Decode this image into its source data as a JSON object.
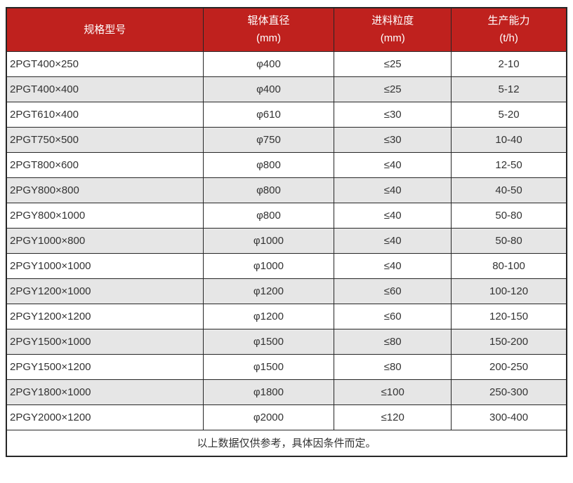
{
  "table": {
    "headers": [
      {
        "line1": "规格型号",
        "line2": ""
      },
      {
        "line1": "辊体直径",
        "line2": "(mm)"
      },
      {
        "line1": "进料粒度",
        "line2": "(mm)"
      },
      {
        "line1": "生产能力",
        "line2": "(t/h)"
      }
    ],
    "rows": [
      [
        "2PGT400×250",
        "φ400",
        "≤25",
        "2-10"
      ],
      [
        "2PGT400×400",
        "φ400",
        "≤25",
        "5-12"
      ],
      [
        "2PGT610×400",
        "φ610",
        "≤30",
        "5-20"
      ],
      [
        "2PGT750×500",
        "φ750",
        "≤30",
        "10-40"
      ],
      [
        "2PGT800×600",
        "φ800",
        "≤40",
        "12-50"
      ],
      [
        "2PGY800×800",
        "φ800",
        "≤40",
        "40-50"
      ],
      [
        "2PGY800×1000",
        "φ800",
        "≤40",
        "50-80"
      ],
      [
        "2PGY1000×800",
        "φ1000",
        "≤40",
        "50-80"
      ],
      [
        "2PGY1000×1000",
        "φ1000",
        "≤40",
        "80-100"
      ],
      [
        "2PGY1200×1000",
        "φ1200",
        "≤60",
        "100-120"
      ],
      [
        "2PGY1200×1200",
        "φ1200",
        "≤60",
        "120-150"
      ],
      [
        "2PGY1500×1000",
        "φ1500",
        "≤80",
        "150-200"
      ],
      [
        "2PGY1500×1200",
        "φ1500",
        "≤80",
        "200-250"
      ],
      [
        "2PGY1800×1000",
        "φ1800",
        "≤100",
        "250-300"
      ],
      [
        "2PGY2000×1200",
        "φ2000",
        "≤120",
        "300-400"
      ]
    ],
    "footer_note": "以上数据仅供参考，具体因条件而定。"
  },
  "colors": {
    "header_bg": "#bf211e",
    "header_text": "#ffffff",
    "row_bg": "#ffffff",
    "zebra_bg": "#e6e6e6",
    "border": "#262626",
    "text": "#333333"
  }
}
